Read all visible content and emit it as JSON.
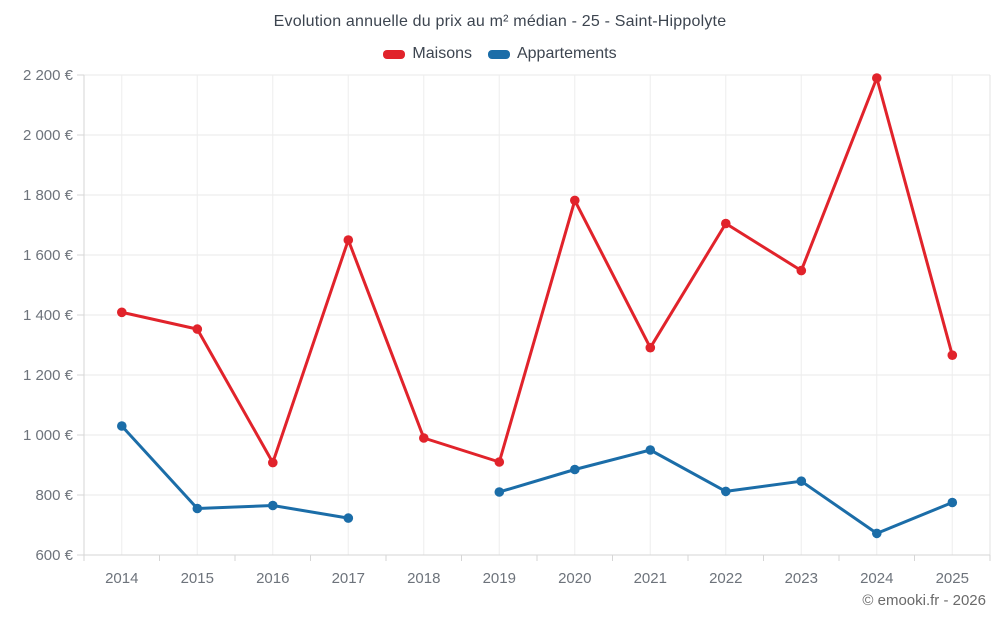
{
  "chart_data": {
    "type": "line",
    "title": "Evolution annuelle du prix au m² médian - 25 - Saint-Hippolyte",
    "categories": [
      "2014",
      "2015",
      "2016",
      "2017",
      "2018",
      "2019",
      "2020",
      "2021",
      "2022",
      "2023",
      "2024",
      "2025"
    ],
    "series": [
      {
        "name": "Maisons",
        "color": "#e1232b",
        "values": [
          1409,
          1353,
          908,
          1650,
          990,
          910,
          1782,
          1291,
          1705,
          1548,
          2190,
          1266
        ]
      },
      {
        "name": "Appartements",
        "color": "#1b6da8",
        "values": [
          1030,
          755,
          765,
          723,
          null,
          810,
          885,
          950,
          812,
          846,
          672,
          775
        ]
      }
    ],
    "ylim": [
      600,
      2200
    ],
    "y_ticks": [
      600,
      800,
      1000,
      1200,
      1400,
      1600,
      1800,
      2000,
      2200
    ],
    "y_tick_labels": [
      "600 €",
      "800 €",
      "1 000 €",
      "1 200 €",
      "1 400 €",
      "1 600 €",
      "1 800 €",
      "2 000 €",
      "2 200 €"
    ],
    "xlabel": "",
    "ylabel": "",
    "grid": true,
    "legend_position": "top",
    "footer": "© emooki.fr - 2026",
    "colors": {
      "title_text": "#3d4550",
      "axis_text": "#6d737b",
      "grid_line": "#e9e9e9",
      "axis_line": "#d6d6d6",
      "background": "#ffffff"
    }
  }
}
